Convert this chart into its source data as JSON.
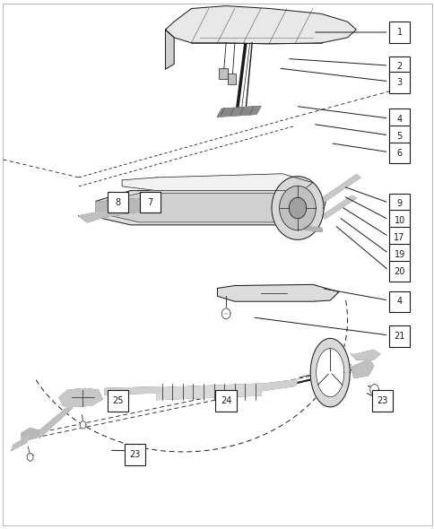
{
  "bg_color": "#ffffff",
  "line_color": "#1a1a1a",
  "label_boxes": [
    {
      "num": "1",
      "bx": 0.92,
      "by": 0.94
    },
    {
      "num": "2",
      "bx": 0.92,
      "by": 0.875
    },
    {
      "num": "3",
      "bx": 0.92,
      "by": 0.845
    },
    {
      "num": "4",
      "bx": 0.92,
      "by": 0.775
    },
    {
      "num": "5",
      "bx": 0.92,
      "by": 0.743
    },
    {
      "num": "6",
      "bx": 0.92,
      "by": 0.711
    },
    {
      "num": "9",
      "bx": 0.92,
      "by": 0.615
    },
    {
      "num": "10",
      "bx": 0.92,
      "by": 0.583
    },
    {
      "num": "17",
      "bx": 0.92,
      "by": 0.551
    },
    {
      "num": "19",
      "bx": 0.92,
      "by": 0.519
    },
    {
      "num": "20",
      "bx": 0.92,
      "by": 0.487
    },
    {
      "num": "4",
      "bx": 0.92,
      "by": 0.43
    },
    {
      "num": "21",
      "bx": 0.92,
      "by": 0.364
    },
    {
      "num": "25",
      "bx": 0.27,
      "by": 0.242
    },
    {
      "num": "24",
      "bx": 0.52,
      "by": 0.242
    },
    {
      "num": "23",
      "bx": 0.88,
      "by": 0.242
    },
    {
      "num": "23",
      "bx": 0.31,
      "by": 0.14
    },
    {
      "num": "8",
      "bx": 0.27,
      "by": 0.618
    },
    {
      "num": "7",
      "bx": 0.345,
      "by": 0.618
    }
  ],
  "leader_lines": [
    [
      0.72,
      0.94,
      0.895,
      0.94
    ],
    [
      0.66,
      0.89,
      0.895,
      0.877
    ],
    [
      0.64,
      0.872,
      0.895,
      0.847
    ],
    [
      0.68,
      0.8,
      0.895,
      0.777
    ],
    [
      0.72,
      0.766,
      0.895,
      0.745
    ],
    [
      0.76,
      0.73,
      0.895,
      0.713
    ],
    [
      0.79,
      0.648,
      0.895,
      0.617
    ],
    [
      0.79,
      0.63,
      0.895,
      0.585
    ],
    [
      0.785,
      0.61,
      0.895,
      0.553
    ],
    [
      0.78,
      0.59,
      0.895,
      0.521
    ],
    [
      0.77,
      0.575,
      0.895,
      0.489
    ],
    [
      0.74,
      0.455,
      0.895,
      0.432
    ],
    [
      0.58,
      0.4,
      0.895,
      0.366
    ],
    [
      0.27,
      0.258,
      0.27,
      0.248
    ],
    [
      0.54,
      0.258,
      0.53,
      0.248
    ],
    [
      0.84,
      0.258,
      0.865,
      0.248
    ],
    [
      0.25,
      0.148,
      0.298,
      0.147
    ],
    [
      0.295,
      0.626,
      0.28,
      0.626
    ],
    [
      0.365,
      0.625,
      0.358,
      0.625
    ]
  ]
}
